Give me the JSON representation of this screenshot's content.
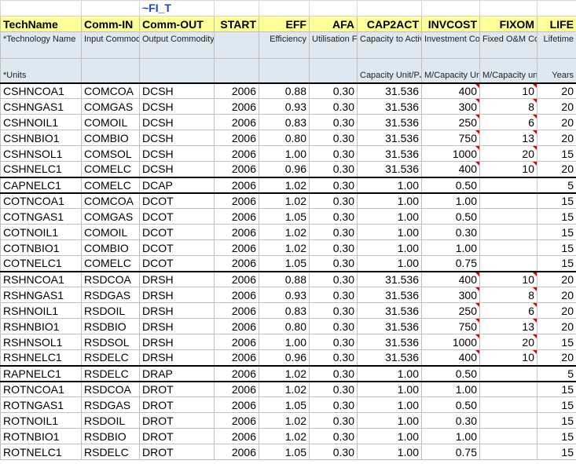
{
  "table_marker": "~FI_T",
  "columns": [
    {
      "key": "techname",
      "header": "TechName",
      "desc": "*Technology Name",
      "units": "*Units"
    },
    {
      "key": "comm_in",
      "header": "Comm-IN",
      "desc": "Input Commodity",
      "units": ""
    },
    {
      "key": "comm_out",
      "header": "Comm-OUT",
      "desc": "Output Commodity",
      "units": ""
    },
    {
      "key": "start",
      "header": "START",
      "desc": "",
      "units": ""
    },
    {
      "key": "eff",
      "header": "EFF",
      "desc": "Efficiency",
      "units": ""
    },
    {
      "key": "afa",
      "header": "AFA",
      "desc": "Utilisation Factor",
      "units": ""
    },
    {
      "key": "cap2act",
      "header": "CAP2ACT",
      "desc": "Capacity to Activity Factor",
      "units": "Capacity Unit/PJ"
    },
    {
      "key": "invcost",
      "header": "INVCOST",
      "desc": "Investment Cost",
      "units": "M/Capacity Unit"
    },
    {
      "key": "fixom",
      "header": "FIXOM",
      "desc": "Fixed O&M Cost",
      "units": "M/Capacity unit"
    },
    {
      "key": "life",
      "header": "LIFE",
      "desc": "Lifetime",
      "units": "Years"
    }
  ],
  "groups": [
    {
      "rows": [
        [
          "CSHNCOA1",
          "COMCOA",
          "DCSH",
          "2006",
          "0.88",
          "0.30",
          "31.536",
          "400",
          "10",
          "20"
        ],
        [
          "CSHNGAS1",
          "COMGAS",
          "DCSH",
          "2006",
          "0.93",
          "0.30",
          "31.536",
          "300",
          "8",
          "20"
        ],
        [
          "CSHNOIL1",
          "COMOIL",
          "DCSH",
          "2006",
          "0.83",
          "0.30",
          "31.536",
          "250",
          "6",
          "20"
        ],
        [
          "CSHNBIO1",
          "COMBIO",
          "DCSH",
          "2006",
          "0.80",
          "0.30",
          "31.536",
          "750",
          "13",
          "20"
        ],
        [
          "CSHNSOL1",
          "COMSOL",
          "DCSH",
          "2006",
          "1.00",
          "0.30",
          "31.536",
          "1000",
          "20",
          "15"
        ],
        [
          "CSHNELC1",
          "COMELC",
          "DCSH",
          "2006",
          "0.96",
          "0.30",
          "31.536",
          "400",
          "10",
          "20"
        ]
      ]
    },
    {
      "rows": [
        [
          "CAPNELC1",
          "COMELC",
          "DCAP",
          "2006",
          "1.02",
          "0.30",
          "1.00",
          "0.50",
          "",
          "5"
        ]
      ]
    },
    {
      "rows": [
        [
          "COTNCOA1",
          "COMCOA",
          "DCOT",
          "2006",
          "1.02",
          "0.30",
          "1.00",
          "1.00",
          "",
          "15"
        ],
        [
          "COTNGAS1",
          "COMGAS",
          "DCOT",
          "2006",
          "1.05",
          "0.30",
          "1.00",
          "0.50",
          "",
          "15"
        ],
        [
          "COTNOIL1",
          "COMOIL",
          "DCOT",
          "2006",
          "1.02",
          "0.30",
          "1.00",
          "0.30",
          "",
          "15"
        ],
        [
          "COTNBIO1",
          "COMBIO",
          "DCOT",
          "2006",
          "1.02",
          "0.30",
          "1.00",
          "1.00",
          "",
          "15"
        ],
        [
          "COTNELC1",
          "COMELC",
          "DCOT",
          "2006",
          "1.05",
          "0.30",
          "1.00",
          "0.75",
          "",
          "15"
        ]
      ]
    },
    {
      "rows": [
        [
          "RSHNCOA1",
          "RSDCOA",
          "DRSH",
          "2006",
          "0.88",
          "0.30",
          "31.536",
          "400",
          "10",
          "20"
        ],
        [
          "RSHNGAS1",
          "RSDGAS",
          "DRSH",
          "2006",
          "0.93",
          "0.30",
          "31.536",
          "300",
          "8",
          "20"
        ],
        [
          "RSHNOIL1",
          "RSDOIL",
          "DRSH",
          "2006",
          "0.83",
          "0.30",
          "31.536",
          "250",
          "6",
          "20"
        ],
        [
          "RSHNBIO1",
          "RSDBIO",
          "DRSH",
          "2006",
          "0.80",
          "0.30",
          "31.536",
          "750",
          "13",
          "20"
        ],
        [
          "RSHNSOL1",
          "RSDSOL",
          "DRSH",
          "2006",
          "1.00",
          "0.30",
          "31.536",
          "1000",
          "20",
          "15"
        ],
        [
          "RSHNELC1",
          "RSDELC",
          "DRSH",
          "2006",
          "0.96",
          "0.30",
          "31.536",
          "400",
          "10",
          "20"
        ]
      ]
    },
    {
      "rows": [
        [
          "RAPNELC1",
          "RSDELC",
          "DRAP",
          "2006",
          "1.02",
          "0.30",
          "1.00",
          "0.50",
          "",
          "5"
        ]
      ]
    },
    {
      "rows": [
        [
          "ROTNCOA1",
          "RSDCOA",
          "DROT",
          "2006",
          "1.02",
          "0.30",
          "1.00",
          "1.00",
          "",
          "15"
        ],
        [
          "ROTNGAS1",
          "RSDGAS",
          "DROT",
          "2006",
          "1.05",
          "0.30",
          "1.00",
          "0.50",
          "",
          "15"
        ],
        [
          "ROTNOIL1",
          "RSDOIL",
          "DROT",
          "2006",
          "1.02",
          "0.30",
          "1.00",
          "0.30",
          "",
          "15"
        ],
        [
          "ROTNBIO1",
          "RSDBIO",
          "DROT",
          "2006",
          "1.02",
          "0.30",
          "1.00",
          "1.00",
          "",
          "15"
        ],
        [
          "ROTNELC1",
          "RSDELC",
          "DROT",
          "2006",
          "1.05",
          "0.30",
          "1.00",
          "0.75",
          "",
          "15"
        ]
      ]
    }
  ],
  "colors": {
    "header_bg": "#ffff99",
    "desc_bg": "#dde8f0",
    "marker": "#1f3fd0",
    "comment_flag": "#e00000"
  }
}
